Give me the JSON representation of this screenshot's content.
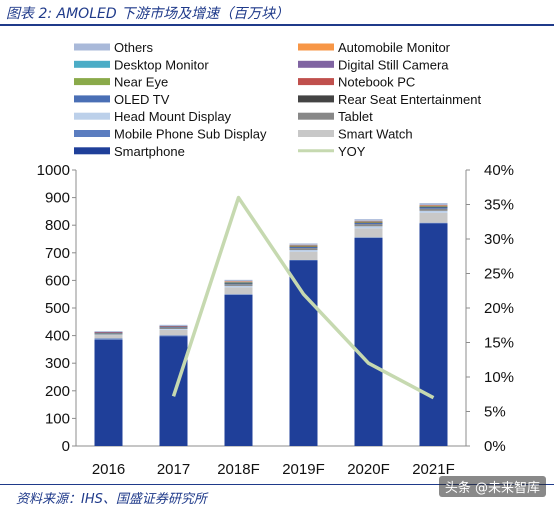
{
  "figure": {
    "title": "图表 2: AMOLED 下游市场及增速（百万块）",
    "source": "资料来源：IHS、国盛证券研究所",
    "watermark": "头条 @未来智库"
  },
  "chart_data": {
    "type": "bar",
    "stacked": true,
    "categories": [
      "2016",
      "2017",
      "2018F",
      "2019F",
      "2020F",
      "2021F"
    ],
    "y_left": {
      "ylim": [
        0,
        1000
      ],
      "ticks": [
        0,
        100,
        200,
        300,
        400,
        500,
        600,
        700,
        800,
        900,
        1000
      ]
    },
    "y_right": {
      "ylim": [
        0,
        40
      ],
      "ticks": [
        "0%",
        "5%",
        "10%",
        "15%",
        "20%",
        "25%",
        "30%",
        "35%",
        "40%"
      ]
    },
    "legend_placement": "top",
    "series": [
      {
        "name": "Smartphone",
        "color": "#1f3f99",
        "values": [
          385,
          398,
          548,
          672,
          754,
          807
        ]
      },
      {
        "name": "Mobile Phone Sub Display",
        "color": "#5b7dc0",
        "values": [
          5,
          3,
          2,
          2,
          2,
          2
        ]
      },
      {
        "name": "Smart Watch",
        "color": "#c8c8c8",
        "values": [
          12,
          20,
          25,
          30,
          33,
          36
        ]
      },
      {
        "name": "Head Mount Display",
        "color": "#bcd0ea",
        "values": [
          2,
          3,
          5,
          6,
          7,
          7
        ]
      },
      {
        "name": "Tablet",
        "color": "#888888",
        "values": [
          4,
          5,
          6,
          7,
          8,
          8
        ]
      },
      {
        "name": "OLED TV",
        "color": "#4a6fb5",
        "values": [
          2,
          3,
          4,
          5,
          5,
          6
        ]
      },
      {
        "name": "Rear Seat Entertainment",
        "color": "#444444",
        "values": [
          0,
          0,
          1,
          1,
          1,
          1
        ]
      },
      {
        "name": "Near Eye",
        "color": "#8aaa4a",
        "values": [
          1,
          1,
          1,
          1,
          1,
          1
        ]
      },
      {
        "name": "Notebook PC",
        "color": "#c0504d",
        "values": [
          1,
          1,
          2,
          2,
          2,
          2
        ]
      },
      {
        "name": "Desktop Monitor",
        "color": "#4bacc6",
        "values": [
          0,
          0,
          1,
          1,
          1,
          1
        ]
      },
      {
        "name": "Digital Still Camera",
        "color": "#8064a2",
        "values": [
          1,
          1,
          1,
          1,
          1,
          1
        ]
      },
      {
        "name": "Automobile Monitor",
        "color": "#f79646",
        "values": [
          0,
          0,
          1,
          1,
          1,
          1
        ]
      },
      {
        "name": "Others",
        "color": "#a9b9d9",
        "values": [
          3,
          4,
          5,
          5,
          6,
          7
        ]
      }
    ],
    "line": {
      "name": "YOY",
      "color": "#c6d9b0",
      "axis": "right",
      "values": [
        null,
        7.2,
        36,
        22,
        12,
        7
      ]
    },
    "legend_order": [
      [
        "Others",
        "Automobile Monitor"
      ],
      [
        "Desktop Monitor",
        "Digital Still Camera"
      ],
      [
        "Near Eye",
        "Notebook PC"
      ],
      [
        "OLED TV",
        "Rear Seat Entertainment"
      ],
      [
        "Head Mount Display",
        "Tablet"
      ],
      [
        "Mobile Phone Sub Display",
        "Smart Watch"
      ],
      [
        "Smartphone",
        "YOY"
      ]
    ]
  }
}
